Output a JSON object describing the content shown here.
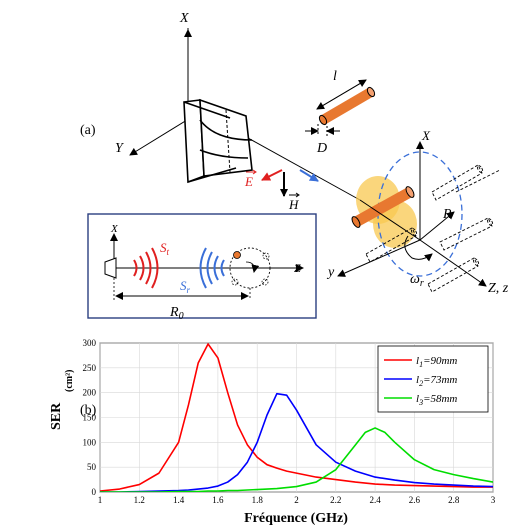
{
  "panel_a": {
    "label": "(a)",
    "axis_X": "X",
    "axis_Y": "Y",
    "rod_length": "l",
    "rod_diameter": "D",
    "field_E": "E",
    "field_H": "H",
    "axis_R": "R",
    "axis_y": "y",
    "axis_Zz": "Z, z",
    "omega": "ω",
    "omega_sub": "r",
    "inset": {
      "x": "X",
      "z": "Z",
      "St": "S",
      "St_sub": "t",
      "Sr": "S",
      "Sr_sub": "r",
      "R0": "R",
      "R0_sub": "0"
    }
  },
  "panel_b": {
    "label": "(b)"
  },
  "colors": {
    "red": "#ff0000",
    "blue": "#0000ff",
    "green": "#00dd00",
    "orange_rod": "#e87830",
    "yellow_blob": "#f8c850",
    "inset_border": "#2a3f80",
    "e_arrow": "#e02020",
    "blue_arrow": "#3a6fd8"
  },
  "chart_data": {
    "type": "line",
    "xlabel": "Fréquence (GHz)",
    "ylabel": "SER",
    "ylabel_unit": "(cm²)",
    "xlim": [
      1,
      3
    ],
    "ylim": [
      0,
      300
    ],
    "xticks": [
      "1",
      "1.2",
      "1.4",
      "1.6",
      "1.8",
      "2",
      "2.2",
      "2.4",
      "2.6",
      "2.8",
      "3"
    ],
    "yticks": [
      "0",
      "50",
      "100",
      "150",
      "200",
      "250",
      "300"
    ],
    "grid": true,
    "legend_position": "top-right",
    "x": [
      1.0,
      1.1,
      1.2,
      1.3,
      1.4,
      1.45,
      1.5,
      1.55,
      1.6,
      1.65,
      1.7,
      1.75,
      1.8,
      1.85,
      1.9,
      1.95,
      2.0,
      2.1,
      2.2,
      2.3,
      2.35,
      2.4,
      2.45,
      2.5,
      2.6,
      2.7,
      2.8,
      2.9,
      3.0
    ],
    "series": [
      {
        "name": "l1=90mm",
        "label_var": "l",
        "label_sub": "1",
        "label_val": "=90mm",
        "color": "#ff0000",
        "values": [
          2,
          6,
          15,
          38,
          100,
          175,
          260,
          298,
          270,
          200,
          135,
          95,
          70,
          55,
          48,
          42,
          38,
          30,
          25,
          20,
          18,
          16,
          15,
          14,
          13,
          12,
          11,
          10,
          10
        ]
      },
      {
        "name": "l2=73mm",
        "label_var": "l",
        "label_sub": "2",
        "label_val": "=73mm",
        "color": "#0000ff",
        "values": [
          0,
          0,
          1,
          2,
          3,
          4,
          6,
          8,
          12,
          20,
          35,
          60,
          100,
          155,
          198,
          195,
          165,
          95,
          60,
          42,
          36,
          30,
          27,
          24,
          19,
          16,
          14,
          12,
          11
        ]
      },
      {
        "name": "l3=58mm",
        "label_var": "l",
        "label_sub": "3",
        "label_val": "=58mm",
        "color": "#00dd00",
        "values": [
          0,
          0,
          0,
          0,
          1,
          1,
          1,
          2,
          2,
          3,
          3,
          4,
          5,
          6,
          7,
          9,
          11,
          20,
          45,
          95,
          120,
          129,
          120,
          100,
          65,
          45,
          35,
          27,
          20
        ]
      }
    ]
  }
}
